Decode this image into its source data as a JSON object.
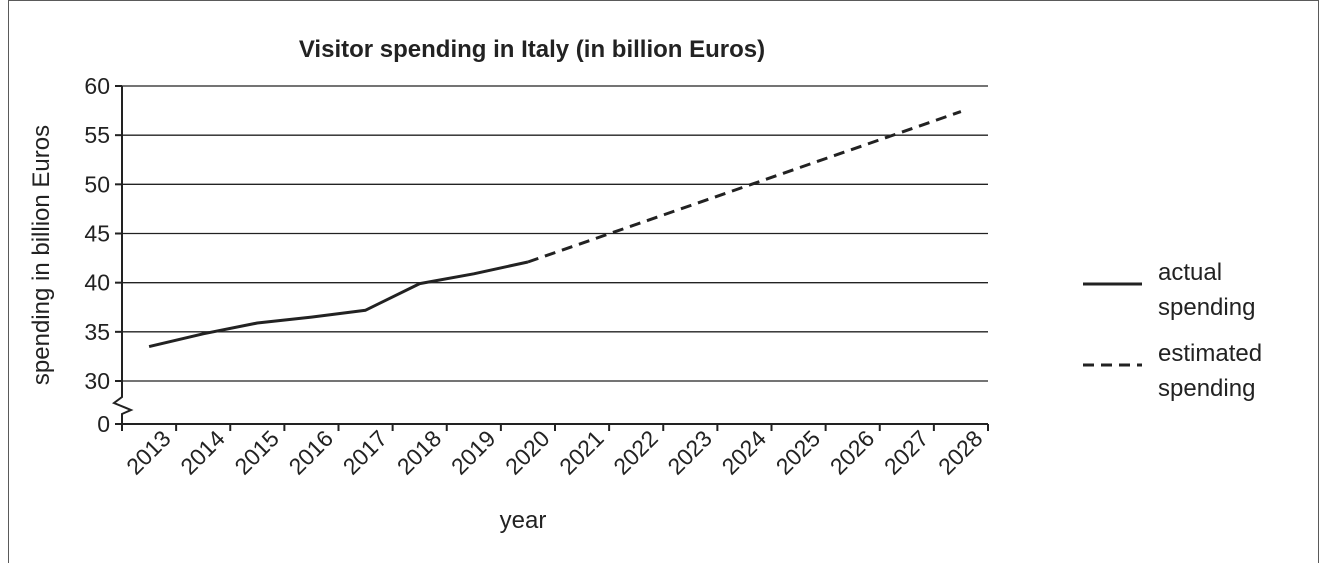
{
  "chart_data": {
    "type": "line",
    "title": "Visitor spending in Italy (in billion Euros)",
    "xlabel": "year",
    "ylabel": "spending in billion Euros",
    "x": [
      "2013",
      "2014",
      "2015",
      "2016",
      "2017",
      "2018",
      "2019",
      "2020",
      "2021",
      "2022",
      "2023",
      "2024",
      "2025",
      "2026",
      "2027",
      "2028"
    ],
    "y_ticks": [
      "0",
      "30",
      "35",
      "40",
      "45",
      "50",
      "55",
      "60"
    ],
    "ylim": [
      30,
      60
    ],
    "y_axis_break": true,
    "grid": "horizontal",
    "legend_position": "right",
    "series": [
      {
        "name": "actual spending",
        "style": "solid",
        "color": "#222222",
        "points": [
          {
            "x": 2013.0,
            "y": 33.5
          },
          {
            "x": 2014.0,
            "y": 34.8
          },
          {
            "x": 2015.0,
            "y": 35.9
          },
          {
            "x": 2016.0,
            "y": 36.5
          },
          {
            "x": 2017.0,
            "y": 37.2
          },
          {
            "x": 2018.0,
            "y": 39.9
          },
          {
            "x": 2019.0,
            "y": 40.9
          },
          {
            "x": 2020.0,
            "y": 42.1
          }
        ]
      },
      {
        "name": "estimated spending",
        "style": "dashed",
        "color": "#222222",
        "points": [
          {
            "x": 2020.0,
            "y": 42.1
          },
          {
            "x": 2028.0,
            "y": 57.4
          }
        ]
      }
    ],
    "legend": [
      {
        "line1": "actual",
        "line2": "spending",
        "style": "solid"
      },
      {
        "line1": "estimated",
        "line2": "spending",
        "style": "dashed"
      }
    ]
  }
}
